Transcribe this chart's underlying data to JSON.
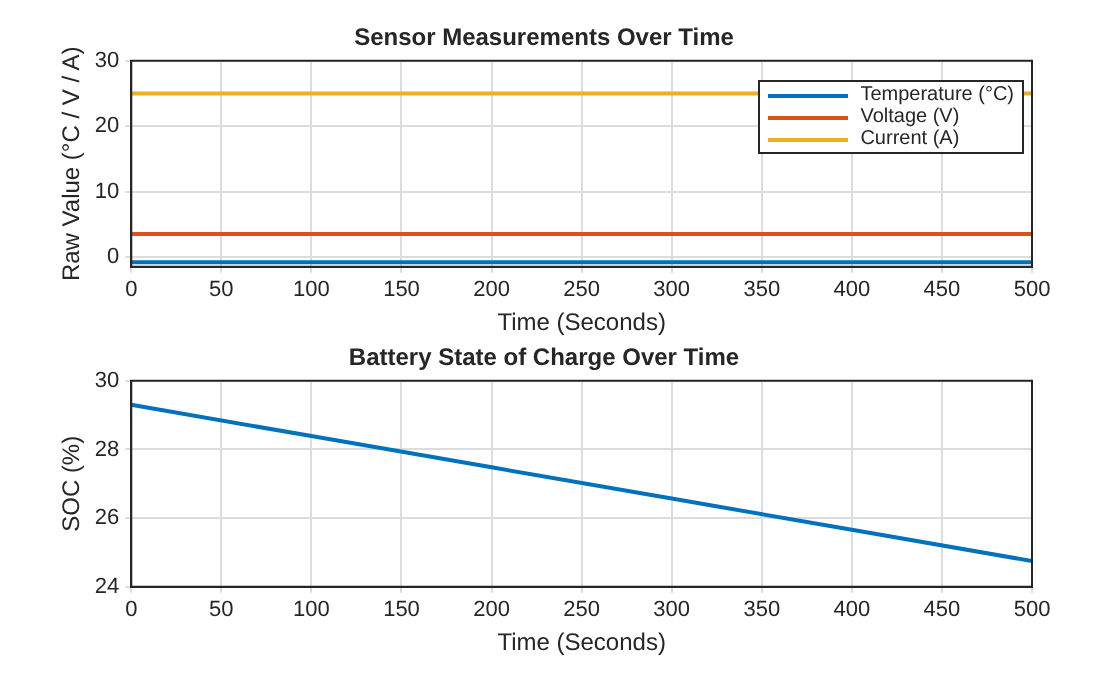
{
  "chart_data": [
    {
      "type": "line",
      "title": "Sensor Measurements Over Time",
      "xlabel": "Time (Seconds)",
      "ylabel": "Raw Value (°C / V / A)",
      "xlim": [
        0,
        500
      ],
      "xticks": [
        0,
        50,
        100,
        150,
        200,
        250,
        300,
        350,
        400,
        450,
        500
      ],
      "ylim": [
        -1.5,
        30
      ],
      "yticks": [
        0,
        10,
        20,
        30
      ],
      "grid": true,
      "legend": "top right",
      "x": [
        0,
        500
      ],
      "series": [
        {
          "name": "Temperature (°C)",
          "color": "#0072bd",
          "values": [
            -0.8,
            -0.8
          ]
        },
        {
          "name": "Voltage (V)",
          "color": "#d95319",
          "values": [
            3.5,
            3.5
          ]
        },
        {
          "name": "Current (A)",
          "color": "#edb120",
          "values": [
            25,
            25
          ]
        }
      ]
    },
    {
      "type": "line",
      "title": "Battery State of Charge Over Time",
      "xlabel": "Time (Seconds)",
      "ylabel": "SOC (%)",
      "xlim": [
        0,
        500
      ],
      "xticks": [
        0,
        50,
        100,
        150,
        200,
        250,
        300,
        350,
        400,
        450,
        500
      ],
      "ylim": [
        24,
        30
      ],
      "yticks": [
        24,
        26,
        28,
        30
      ],
      "grid": true,
      "x": [
        0,
        100,
        200,
        300,
        400,
        500
      ],
      "series": [
        {
          "color": "#0072bd",
          "values": [
            29.3,
            28.39,
            27.48,
            26.57,
            25.66,
            24.75
          ]
        }
      ]
    }
  ]
}
